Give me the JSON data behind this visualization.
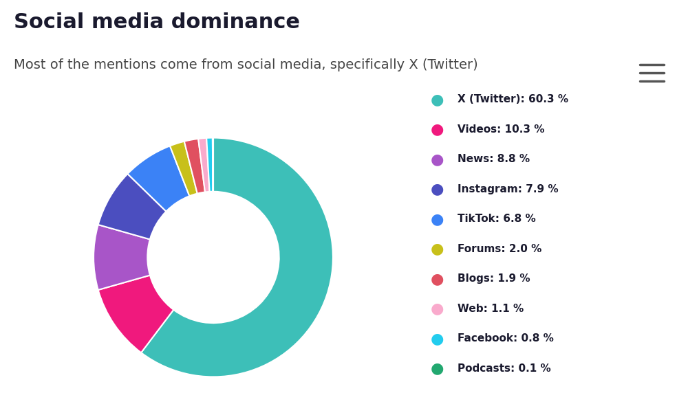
{
  "title": "Social media dominance",
  "subtitle": "Most of the mentions come from social media, specifically X (Twitter)",
  "labels": [
    "X (Twitter)",
    "Videos",
    "News",
    "Instagram",
    "TikTok",
    "Forums",
    "Blogs",
    "Web",
    "Facebook",
    "Podcasts"
  ],
  "values": [
    60.3,
    10.3,
    8.8,
    7.9,
    6.8,
    2.0,
    1.9,
    1.1,
    0.8,
    0.1
  ],
  "colors": [
    "#3DBFB8",
    "#F0197D",
    "#A855C8",
    "#4B4EBF",
    "#3B82F6",
    "#C8C01A",
    "#E05060",
    "#F9AACC",
    "#22CCEE",
    "#22A870"
  ],
  "legend_labels": [
    "X (Twitter): 60.3 %",
    "Videos: 10.3 %",
    "News: 8.8 %",
    "Instagram: 7.9 %",
    "TikTok: 6.8 %",
    "Forums: 2.0 %",
    "Blogs: 1.9 %",
    "Web: 1.1 %",
    "Facebook: 0.8 %",
    "Podcasts: 0.1 %"
  ],
  "background_color": "#ffffff",
  "title_fontsize": 22,
  "subtitle_fontsize": 14,
  "title_color": "#1a1a2e",
  "subtitle_color": "#444444",
  "wedge_edge_color": "#ffffff",
  "donut_width": 0.45
}
